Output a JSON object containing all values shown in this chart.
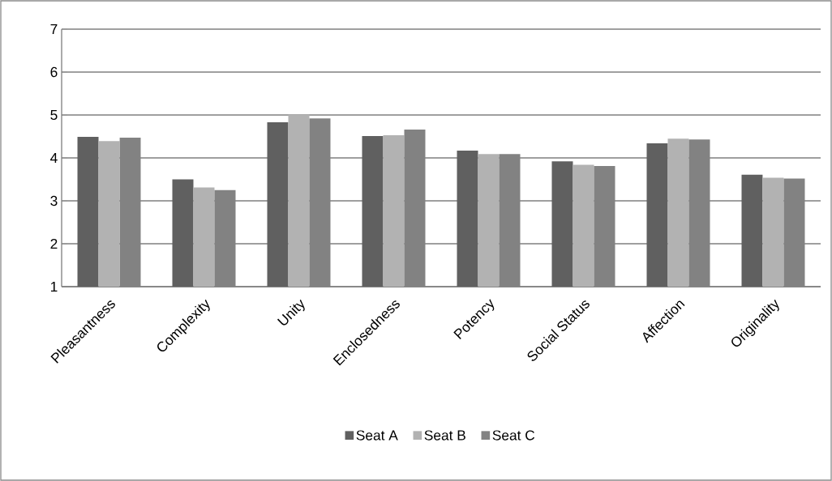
{
  "chart_data": {
    "type": "bar",
    "categories": [
      "Pleasantness",
      "Complexity",
      "Unity",
      "Enclosedness",
      "Potency",
      "Social Status",
      "Affection",
      "Originality"
    ],
    "series": [
      {
        "name": "Seat A",
        "color": "#606060",
        "values": [
          4.49,
          3.5,
          4.83,
          4.51,
          4.17,
          3.92,
          4.34,
          3.61
        ]
      },
      {
        "name": "Seat B",
        "color": "#b2b2b2",
        "values": [
          4.39,
          3.31,
          5.01,
          4.53,
          4.09,
          3.84,
          4.45,
          3.54
        ]
      },
      {
        "name": "Seat C",
        "color": "#828282",
        "values": [
          4.47,
          3.25,
          4.92,
          4.66,
          4.09,
          3.81,
          4.43,
          3.52
        ]
      }
    ],
    "ylim": [
      1,
      7
    ],
    "yticks": [
      1,
      2,
      3,
      4,
      5,
      6,
      7
    ],
    "grid": "y",
    "legend": "bottom"
  }
}
